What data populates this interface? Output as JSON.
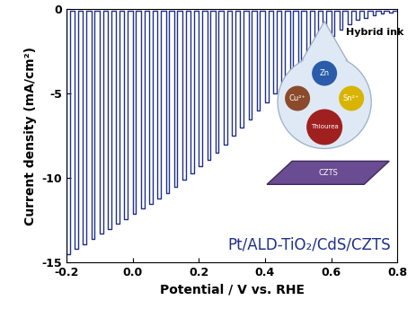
{
  "chart_data": {
    "type": "line",
    "x_label": "Potential / V vs. RHE",
    "y_label": "Current density (mA/cm²)",
    "annotations": [
      "Pt/ALD-TiO₂/CdS/CZTS"
    ],
    "inset": {
      "title": "Hybrid ink",
      "labels": [
        "Zn",
        "Cu²⁺",
        "Sn²⁺",
        "Thiourea"
      ],
      "substrate": "CZTS"
    },
    "xlim": [
      -0.2,
      0.8
    ],
    "xticks": [
      -0.2,
      {
        "value": 0,
        "label": "0.0"
      },
      0.2,
      0.4,
      0.6,
      0.8
    ],
    "ylim": [
      -15,
      0
    ],
    "yticks": [
      0,
      -5,
      -10,
      -15
    ],
    "grid": false,
    "series": [
      {
        "color": "#1f2f8a",
        "x": [
          -0.2,
          -0.2,
          -0.19,
          -0.19,
          -0.175,
          -0.175,
          -0.165,
          -0.165,
          -0.15,
          -0.15,
          -0.14,
          -0.14,
          -0.125,
          -0.125,
          -0.115,
          -0.115,
          -0.1,
          -0.1,
          -0.09,
          -0.09,
          -0.075,
          -0.075,
          -0.065,
          -0.065,
          -0.05,
          -0.05,
          -0.04,
          -0.04,
          -0.025,
          -0.025,
          -0.015,
          -0.015,
          0,
          0,
          0.01,
          0.01,
          0.025,
          0.025,
          0.035,
          0.035,
          0.05,
          0.05,
          0.06,
          0.06,
          0.075,
          0.075,
          0.085,
          0.085,
          0.1,
          0.1,
          0.11,
          0.11,
          0.125,
          0.125,
          0.135,
          0.135,
          0.15,
          0.15,
          0.16,
          0.16,
          0.175,
          0.175,
          0.185,
          0.185,
          0.2,
          0.2,
          0.21,
          0.21,
          0.225,
          0.225,
          0.235,
          0.235,
          0.25,
          0.25,
          0.26,
          0.26,
          0.275,
          0.275,
          0.285,
          0.285,
          0.3,
          0.3,
          0.31,
          0.31,
          0.325,
          0.325,
          0.335,
          0.335,
          0.35,
          0.35,
          0.36,
          0.36,
          0.375,
          0.375,
          0.385,
          0.385,
          0.4,
          0.4,
          0.41,
          0.41,
          0.425,
          0.425,
          0.435,
          0.435,
          0.45,
          0.45,
          0.46,
          0.46,
          0.475,
          0.475,
          0.485,
          0.485,
          0.5,
          0.5,
          0.51,
          0.51,
          0.525,
          0.525,
          0.535,
          0.535,
          0.55,
          0.55,
          0.56,
          0.56,
          0.575,
          0.575,
          0.585,
          0.585,
          0.6,
          0.6,
          0.61,
          0.61,
          0.625,
          0.625,
          0.635,
          0.635,
          0.65,
          0.65,
          0.66,
          0.66,
          0.675,
          0.675,
          0.685,
          0.685,
          0.7,
          0.7,
          0.71,
          0.71,
          0.725,
          0.725,
          0.735,
          0.735,
          0.75,
          0.75,
          0.76,
          0.76,
          0.775,
          0.775,
          0.785,
          0.785,
          0.8
        ],
        "values": [
          -0.1,
          -14.5,
          -14.5,
          -0.1,
          -0.1,
          -14.2,
          -14.2,
          -0.1,
          -0.1,
          -13.9,
          -13.9,
          -0.1,
          -0.1,
          -13.6,
          -13.6,
          -0.1,
          -0.1,
          -13.3,
          -13.3,
          -0.1,
          -0.1,
          -13.0,
          -13.0,
          -0.1,
          -0.1,
          -12.7,
          -12.7,
          -0.1,
          -0.1,
          -12.4,
          -12.4,
          -0.1,
          -0.1,
          -12.1,
          -12.1,
          -0.1,
          -0.1,
          -11.8,
          -11.8,
          -0.1,
          -0.1,
          -11.5,
          -11.5,
          -0.1,
          -0.1,
          -11.2,
          -11.2,
          -0.1,
          -0.1,
          -10.9,
          -10.9,
          -0.1,
          -0.1,
          -10.5,
          -10.5,
          -0.1,
          -0.1,
          -10.1,
          -10.1,
          -0.1,
          -0.1,
          -9.7,
          -9.7,
          -0.1,
          -0.1,
          -9.3,
          -9.3,
          -0.1,
          -0.1,
          -8.9,
          -8.9,
          -0.1,
          -0.1,
          -8.5,
          -8.5,
          -0.1,
          -0.1,
          -8.0,
          -8.0,
          -0.1,
          -0.1,
          -7.5,
          -7.5,
          -0.1,
          -0.1,
          -7.0,
          -7.0,
          -0.1,
          -0.1,
          -6.5,
          -6.5,
          -0.1,
          -0.1,
          -6.0,
          -6.0,
          -0.1,
          -0.1,
          -5.5,
          -5.5,
          -0.1,
          -0.1,
          -5.0,
          -5.0,
          -0.1,
          -0.1,
          -4.5,
          -4.5,
          -0.1,
          -0.1,
          -4.0,
          -4.0,
          -0.1,
          -0.1,
          -3.5,
          -3.5,
          -0.1,
          -0.1,
          -3.0,
          -3.0,
          -0.1,
          -0.1,
          -2.5,
          -2.5,
          -0.1,
          -0.1,
          -2.0,
          -2.0,
          -0.1,
          -0.1,
          -1.6,
          -1.6,
          -0.1,
          -0.1,
          -1.2,
          -1.2,
          -0.1,
          -0.1,
          -0.9,
          -0.9,
          -0.1,
          -0.1,
          -0.6,
          -0.6,
          -0.1,
          -0.1,
          -0.5,
          -0.5,
          -0.1,
          -0.1,
          -0.35,
          -0.35,
          -0.1,
          -0.1,
          -0.25,
          -0.25,
          -0.1,
          -0.1,
          -0.2,
          -0.2,
          -0.1,
          -0.1
        ]
      }
    ]
  }
}
